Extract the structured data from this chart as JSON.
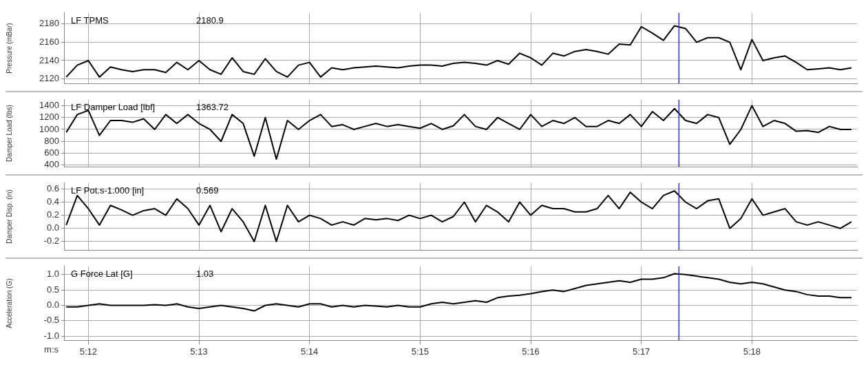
{
  "chart_data": [
    {
      "type": "line",
      "ylabel": "Pressure (mBar)",
      "legend": "top left",
      "grid": true,
      "marker": "none",
      "tick_labels": "y",
      "x": [
        311.8,
        311.9,
        312.0,
        312.1,
        312.2,
        312.3,
        312.4,
        312.5,
        312.6,
        312.7,
        312.8,
        312.9,
        313.0,
        313.1,
        313.2,
        313.3,
        313.4,
        313.5,
        313.6,
        313.7,
        313.8,
        313.9,
        314.0,
        314.1,
        314.2,
        314.3,
        314.4,
        314.5,
        314.6,
        314.7,
        314.8,
        314.9,
        315.0,
        315.1,
        315.2,
        315.3,
        315.4,
        315.5,
        315.6,
        315.7,
        315.8,
        315.9,
        316.0,
        316.1,
        316.2,
        316.3,
        316.4,
        316.5,
        316.6,
        316.7,
        316.8,
        316.9,
        317.0,
        317.1,
        317.2,
        317.3,
        317.4,
        317.5,
        317.6,
        317.7,
        317.8,
        317.9,
        318.0,
        318.1,
        318.2,
        318.3,
        318.4,
        318.5,
        318.6,
        318.7,
        318.8,
        318.9
      ],
      "xlim": [
        311.78,
        318.95
      ],
      "xticks": [
        {
          "value": 312,
          "label": null
        },
        {
          "value": 313,
          "label": null
        },
        {
          "value": 314,
          "label": null
        },
        {
          "value": 315,
          "label": null
        },
        {
          "value": 316,
          "label": null
        },
        {
          "value": 317,
          "label": null
        },
        {
          "value": 318,
          "label": null
        }
      ],
      "ylim": [
        2115,
        2192
      ],
      "yticks": [
        2120,
        2140,
        2160,
        2180
      ],
      "series": [
        {
          "name": "LF TPMS",
          "color": "#000000",
          "values": [
            2122,
            2135,
            2140,
            2122,
            2133,
            2130,
            2128,
            2130,
            2130,
            2127,
            2138,
            2130,
            2140,
            2130,
            2125,
            2143,
            2128,
            2125,
            2142,
            2128,
            2122,
            2135,
            2138,
            2122,
            2132,
            2130,
            2132,
            2133,
            2134,
            2133,
            2132,
            2134,
            2135,
            2135,
            2134,
            2137,
            2138,
            2137,
            2135,
            2140,
            2136,
            2148,
            2143,
            2135,
            2148,
            2145,
            2150,
            2152,
            2150,
            2147,
            2158,
            2157,
            2177,
            2170,
            2162,
            2178,
            2175,
            2160,
            2165,
            2165,
            2160,
            2130,
            2163,
            2140,
            2143,
            2145,
            2138,
            2130,
            2131,
            2132,
            2130,
            2132
          ]
        }
      ],
      "annotations": [
        "2180.9"
      ],
      "ref_lines": [
        {
          "axis": "x",
          "value": 317.34,
          "color": "#3030d0"
        }
      ]
    },
    {
      "type": "line",
      "ylabel": "Damper Load (lbs)",
      "legend": "top left",
      "grid": true,
      "marker": "none",
      "tick_labels": "y",
      "x": [
        311.8,
        311.9,
        312.0,
        312.1,
        312.2,
        312.3,
        312.4,
        312.5,
        312.6,
        312.7,
        312.8,
        312.9,
        313.0,
        313.1,
        313.2,
        313.3,
        313.4,
        313.5,
        313.6,
        313.7,
        313.8,
        313.9,
        314.0,
        314.1,
        314.2,
        314.3,
        314.4,
        314.5,
        314.6,
        314.7,
        314.8,
        314.9,
        315.0,
        315.1,
        315.2,
        315.3,
        315.4,
        315.5,
        315.6,
        315.7,
        315.8,
        315.9,
        316.0,
        316.1,
        316.2,
        316.3,
        316.4,
        316.5,
        316.6,
        316.7,
        316.8,
        316.9,
        317.0,
        317.1,
        317.2,
        317.3,
        317.4,
        317.5,
        317.6,
        317.7,
        317.8,
        317.9,
        318.0,
        318.1,
        318.2,
        318.3,
        318.4,
        318.5,
        318.6,
        318.7,
        318.8,
        318.9
      ],
      "xlim": [
        311.78,
        318.95
      ],
      "xticks": [
        {
          "value": 312,
          "label": null
        },
        {
          "value": 313,
          "label": null
        },
        {
          "value": 314,
          "label": null
        },
        {
          "value": 315,
          "label": null
        },
        {
          "value": 316,
          "label": null
        },
        {
          "value": 317,
          "label": null
        },
        {
          "value": 318,
          "label": null
        }
      ],
      "ylim": [
        372,
        1500
      ],
      "yticks": [
        400,
        600,
        800,
        1000,
        1200,
        1400
      ],
      "series": [
        {
          "name": "LF Damper Load [lbf]",
          "color": "#000000",
          "values": [
            950,
            1250,
            1320,
            900,
            1150,
            1150,
            1120,
            1180,
            1000,
            1250,
            1100,
            1250,
            1100,
            1000,
            800,
            1250,
            1100,
            550,
            1200,
            500,
            1150,
            1000,
            1150,
            1250,
            1050,
            1080,
            1000,
            1050,
            1100,
            1050,
            1080,
            1050,
            1020,
            1100,
            1000,
            1060,
            1250,
            1050,
            1000,
            1200,
            1100,
            1000,
            1250,
            1050,
            1150,
            1100,
            1200,
            1050,
            1050,
            1150,
            1100,
            1250,
            1050,
            1300,
            1150,
            1350,
            1150,
            1100,
            1250,
            1200,
            750,
            1000,
            1400,
            1050,
            1150,
            1100,
            970,
            980,
            950,
            1050,
            1000,
            1000
          ]
        }
      ],
      "annotations": [
        "1363.72"
      ],
      "ref_lines": [
        {
          "axis": "x",
          "value": 317.34,
          "color": "#3030d0"
        }
      ]
    },
    {
      "type": "line",
      "ylabel": "Damper Disp. (in)",
      "legend": "top left",
      "grid": true,
      "marker": "none",
      "tick_labels": "y",
      "x": [
        311.8,
        311.9,
        312.0,
        312.1,
        312.2,
        312.3,
        312.4,
        312.5,
        312.6,
        312.7,
        312.8,
        312.9,
        313.0,
        313.1,
        313.2,
        313.3,
        313.4,
        313.5,
        313.6,
        313.7,
        313.8,
        313.9,
        314.0,
        314.1,
        314.2,
        314.3,
        314.4,
        314.5,
        314.6,
        314.7,
        314.8,
        314.9,
        315.0,
        315.1,
        315.2,
        315.3,
        315.4,
        315.5,
        315.6,
        315.7,
        315.8,
        315.9,
        316.0,
        316.1,
        316.2,
        316.3,
        316.4,
        316.5,
        316.6,
        316.7,
        316.8,
        316.9,
        317.0,
        317.1,
        317.2,
        317.3,
        317.4,
        317.5,
        317.6,
        317.7,
        317.8,
        317.9,
        318.0,
        318.1,
        318.2,
        318.3,
        318.4,
        318.5,
        318.6,
        318.7,
        318.8,
        318.9
      ],
      "xlim": [
        311.78,
        318.95
      ],
      "xticks": [
        {
          "value": 312,
          "label": null
        },
        {
          "value": 313,
          "label": null
        },
        {
          "value": 314,
          "label": null
        },
        {
          "value": 315,
          "label": null
        },
        {
          "value": 316,
          "label": null
        },
        {
          "value": 317,
          "label": null
        },
        {
          "value": 318,
          "label": null
        }
      ],
      "ylim": [
        -0.33,
        0.69
      ],
      "yticks": [
        {
          "value": -0.2,
          "label": "-0.2"
        },
        {
          "value": 0,
          "label": "0.0"
        },
        {
          "value": 0.2,
          "label": "0.2"
        },
        {
          "value": 0.4,
          "label": "0.4"
        },
        {
          "value": 0.6,
          "label": "0.6"
        }
      ],
      "series": [
        {
          "name": "LF Pot.s-1.000 [in]",
          "color": "#000000",
          "values": [
            0.05,
            0.5,
            0.3,
            0.05,
            0.35,
            0.28,
            0.2,
            0.27,
            0.3,
            0.2,
            0.45,
            0.3,
            0.05,
            0.35,
            -0.05,
            0.3,
            0.1,
            -0.2,
            0.35,
            -0.2,
            0.35,
            0.1,
            0.2,
            0.15,
            0.05,
            0.1,
            0.05,
            0.15,
            0.13,
            0.15,
            0.12,
            0.2,
            0.15,
            0.2,
            0.1,
            0.18,
            0.4,
            0.1,
            0.35,
            0.25,
            0.1,
            0.4,
            0.2,
            0.35,
            0.3,
            0.3,
            0.25,
            0.25,
            0.3,
            0.5,
            0.3,
            0.55,
            0.4,
            0.3,
            0.5,
            0.57,
            0.4,
            0.3,
            0.42,
            0.45,
            0.0,
            0.15,
            0.45,
            0.2,
            0.25,
            0.3,
            0.1,
            0.05,
            0.1,
            0.05,
            0.0,
            0.1
          ]
        }
      ],
      "annotations": [
        "0.569"
      ],
      "ref_lines": [
        {
          "axis": "x",
          "value": 317.34,
          "color": "#3030d0"
        }
      ]
    },
    {
      "type": "line",
      "ylabel": "Acceleration (G)",
      "xlabel": "m:s",
      "legend": "top left",
      "grid": true,
      "marker": "none",
      "x": [
        311.8,
        311.9,
        312.0,
        312.1,
        312.2,
        312.3,
        312.4,
        312.5,
        312.6,
        312.7,
        312.8,
        312.9,
        313.0,
        313.1,
        313.2,
        313.3,
        313.4,
        313.5,
        313.6,
        313.7,
        313.8,
        313.9,
        314.0,
        314.1,
        314.2,
        314.3,
        314.4,
        314.5,
        314.6,
        314.7,
        314.8,
        314.9,
        315.0,
        315.1,
        315.2,
        315.3,
        315.4,
        315.5,
        315.6,
        315.7,
        315.8,
        315.9,
        316.0,
        316.1,
        316.2,
        316.3,
        316.4,
        316.5,
        316.6,
        316.7,
        316.8,
        316.9,
        317.0,
        317.1,
        317.2,
        317.3,
        317.4,
        317.5,
        317.6,
        317.7,
        317.8,
        317.9,
        318.0,
        318.1,
        318.2,
        318.3,
        318.4,
        318.5,
        318.6,
        318.7,
        318.8,
        318.9
      ],
      "xlim": [
        311.78,
        318.95
      ],
      "xticks": [
        {
          "value": 312,
          "label": "5:12"
        },
        {
          "value": 313,
          "label": "5:13"
        },
        {
          "value": 314,
          "label": "5:14"
        },
        {
          "value": 315,
          "label": "5:15"
        },
        {
          "value": 316,
          "label": "5:16"
        },
        {
          "value": 317,
          "label": "5:17"
        },
        {
          "value": 318,
          "label": "5:18"
        }
      ],
      "ylim": [
        -1.14,
        1.27
      ],
      "yticks": [
        {
          "value": -1,
          "label": "-1.0"
        },
        {
          "value": -0.5,
          "label": "-0.5"
        },
        {
          "value": 0,
          "label": "0.0"
        },
        {
          "value": 0.5,
          "label": "0.5"
        },
        {
          "value": 1,
          "label": "1.0"
        }
      ],
      "series": [
        {
          "name": "G Force Lat [G]",
          "color": "#000000",
          "values": [
            -0.05,
            -0.05,
            0.0,
            0.05,
            0.0,
            0.0,
            0.0,
            0.0,
            0.02,
            0.0,
            0.05,
            -0.05,
            -0.1,
            -0.05,
            0.0,
            -0.05,
            -0.1,
            -0.18,
            0.0,
            0.05,
            0.0,
            -0.05,
            0.05,
            0.05,
            -0.05,
            0.0,
            -0.05,
            0.0,
            -0.02,
            -0.05,
            0.0,
            -0.05,
            -0.05,
            0.05,
            0.1,
            0.05,
            0.1,
            0.15,
            0.1,
            0.25,
            0.3,
            0.33,
            0.38,
            0.45,
            0.5,
            0.45,
            0.55,
            0.65,
            0.7,
            0.75,
            0.8,
            0.75,
            0.85,
            0.85,
            0.9,
            1.03,
            1.0,
            0.95,
            0.9,
            0.85,
            0.75,
            0.7,
            0.75,
            0.7,
            0.6,
            0.5,
            0.45,
            0.35,
            0.3,
            0.3,
            0.25,
            0.25
          ]
        }
      ],
      "annotations": [
        "1.03"
      ],
      "ref_lines": [
        {
          "axis": "x",
          "value": 317.34,
          "color": "#3030d0"
        }
      ]
    }
  ]
}
